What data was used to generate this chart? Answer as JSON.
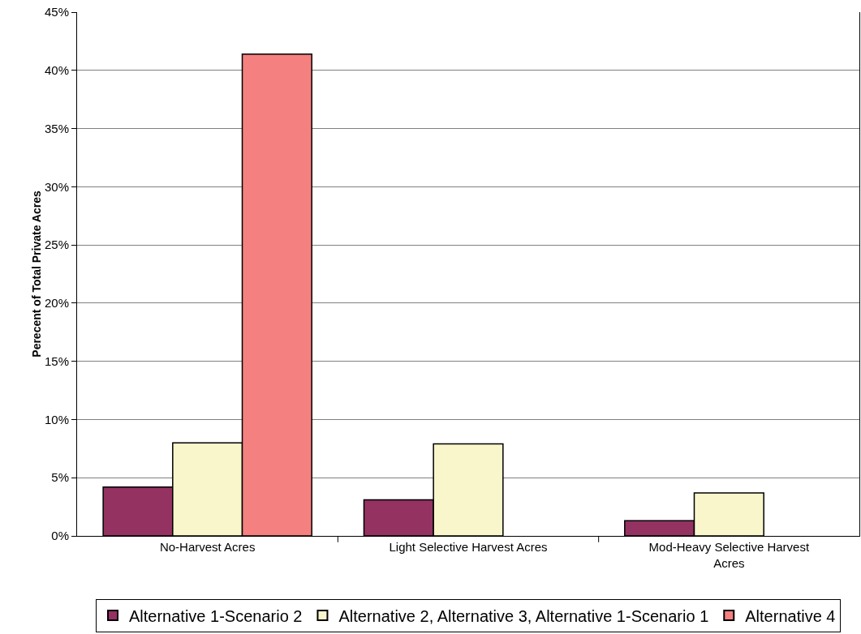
{
  "chart_data": {
    "type": "bar",
    "ylabel": "Perecent of Total Private Acres",
    "categories": [
      "No-Harvest Acres",
      "Light Selective Harvest Acres",
      "Mod-Heavy Selective Harvest Acres"
    ],
    "series": [
      {
        "name": "Alternative 1-Scenario 2",
        "color": "#943262",
        "values": [
          4.2,
          3.1,
          1.3
        ]
      },
      {
        "name": "Alternative 2, Alternative 3, Alternative 1-Scenario 1",
        "color": "#faf6cc",
        "values": [
          8.0,
          7.9,
          3.7
        ]
      },
      {
        "name": "Alternative 4",
        "color": "#f48080",
        "values": [
          41.4,
          null,
          null
        ]
      }
    ],
    "ylim": [
      0,
      45
    ],
    "yticks": [
      {
        "value": 0,
        "label": "0%"
      },
      {
        "value": 5,
        "label": "5%"
      },
      {
        "value": 10,
        "label": "10%"
      },
      {
        "value": 15,
        "label": "15%"
      },
      {
        "value": 20,
        "label": "20%"
      },
      {
        "value": 25,
        "label": "25%"
      },
      {
        "value": 30,
        "label": "30%"
      },
      {
        "value": 35,
        "label": "35%"
      },
      {
        "value": 40,
        "label": "40%"
      },
      {
        "value": 45,
        "label": "45%"
      }
    ],
    "grid": "y",
    "legend": "bottom"
  }
}
